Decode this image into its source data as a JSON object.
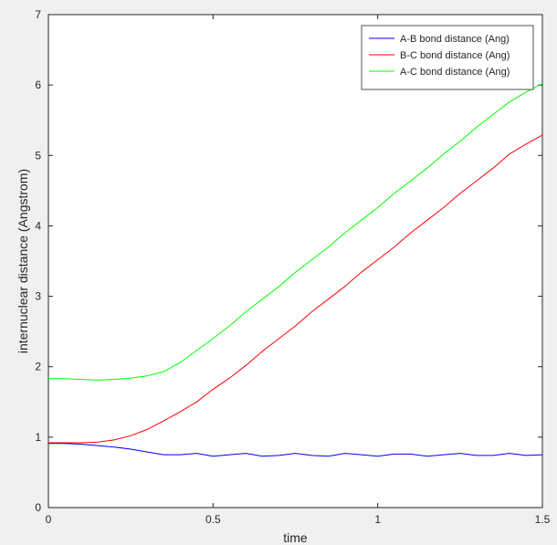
{
  "chart_data": {
    "type": "line",
    "title": "",
    "xlabel": "time",
    "ylabel": "internuclear distance (Angstrom)",
    "xlim": [
      0,
      1.5
    ],
    "ylim": [
      0,
      7
    ],
    "xticks": [
      0,
      0.5,
      1,
      1.5
    ],
    "xtick_labels": [
      "0",
      "0.5",
      "1",
      "1.5"
    ],
    "yticks": [
      0,
      1,
      2,
      3,
      4,
      5,
      6,
      7
    ],
    "ytick_labels": [
      "0",
      "1",
      "2",
      "3",
      "4",
      "5",
      "6",
      "7"
    ],
    "grid": false,
    "legend_position": "top-right",
    "series": [
      {
        "name": "A-B bond distance (Ang)",
        "color": "#0000ff",
        "x": [
          0,
          0.05,
          0.1,
          0.15,
          0.2,
          0.25,
          0.3,
          0.35,
          0.4,
          0.45,
          0.5,
          0.55,
          0.6,
          0.65,
          0.7,
          0.75,
          0.8,
          0.85,
          0.9,
          0.95,
          1.0,
          1.05,
          1.1,
          1.15,
          1.2,
          1.25,
          1.3,
          1.35,
          1.4,
          1.45,
          1.5
        ],
        "y": [
          0.91,
          0.91,
          0.9,
          0.88,
          0.86,
          0.83,
          0.79,
          0.75,
          0.75,
          0.77,
          0.73,
          0.75,
          0.77,
          0.73,
          0.74,
          0.77,
          0.74,
          0.73,
          0.77,
          0.75,
          0.73,
          0.76,
          0.76,
          0.73,
          0.75,
          0.77,
          0.74,
          0.74,
          0.77,
          0.74,
          0.75
        ]
      },
      {
        "name": "B-C bond distance (Ang)",
        "color": "#ff0000",
        "x": [
          0,
          0.05,
          0.1,
          0.15,
          0.2,
          0.25,
          0.3,
          0.35,
          0.4,
          0.45,
          0.5,
          0.55,
          0.6,
          0.65,
          0.7,
          0.75,
          0.8,
          0.85,
          0.9,
          0.95,
          1.0,
          1.05,
          1.1,
          1.15,
          1.2,
          1.25,
          1.3,
          1.35,
          1.4,
          1.45,
          1.5
        ],
        "y": [
          0.92,
          0.92,
          0.92,
          0.93,
          0.96,
          1.02,
          1.11,
          1.23,
          1.36,
          1.5,
          1.68,
          1.84,
          2.02,
          2.22,
          2.4,
          2.58,
          2.78,
          2.96,
          3.14,
          3.34,
          3.52,
          3.7,
          3.9,
          4.08,
          4.26,
          4.46,
          4.64,
          4.82,
          5.02,
          5.16,
          5.29
        ]
      },
      {
        "name": "A-C bond distance (Ang)",
        "color": "#00ff00",
        "x": [
          0,
          0.05,
          0.1,
          0.15,
          0.2,
          0.25,
          0.3,
          0.35,
          0.4,
          0.45,
          0.5,
          0.55,
          0.6,
          0.65,
          0.7,
          0.75,
          0.8,
          0.85,
          0.9,
          0.95,
          1.0,
          1.05,
          1.1,
          1.15,
          1.2,
          1.25,
          1.3,
          1.35,
          1.4,
          1.45,
          1.5
        ],
        "y": [
          1.83,
          1.83,
          1.82,
          1.81,
          1.82,
          1.84,
          1.87,
          1.93,
          2.06,
          2.23,
          2.4,
          2.58,
          2.78,
          2.96,
          3.14,
          3.34,
          3.52,
          3.7,
          3.9,
          4.08,
          4.26,
          4.46,
          4.64,
          4.82,
          5.02,
          5.2,
          5.4,
          5.58,
          5.76,
          5.9,
          6.02
        ]
      }
    ]
  }
}
